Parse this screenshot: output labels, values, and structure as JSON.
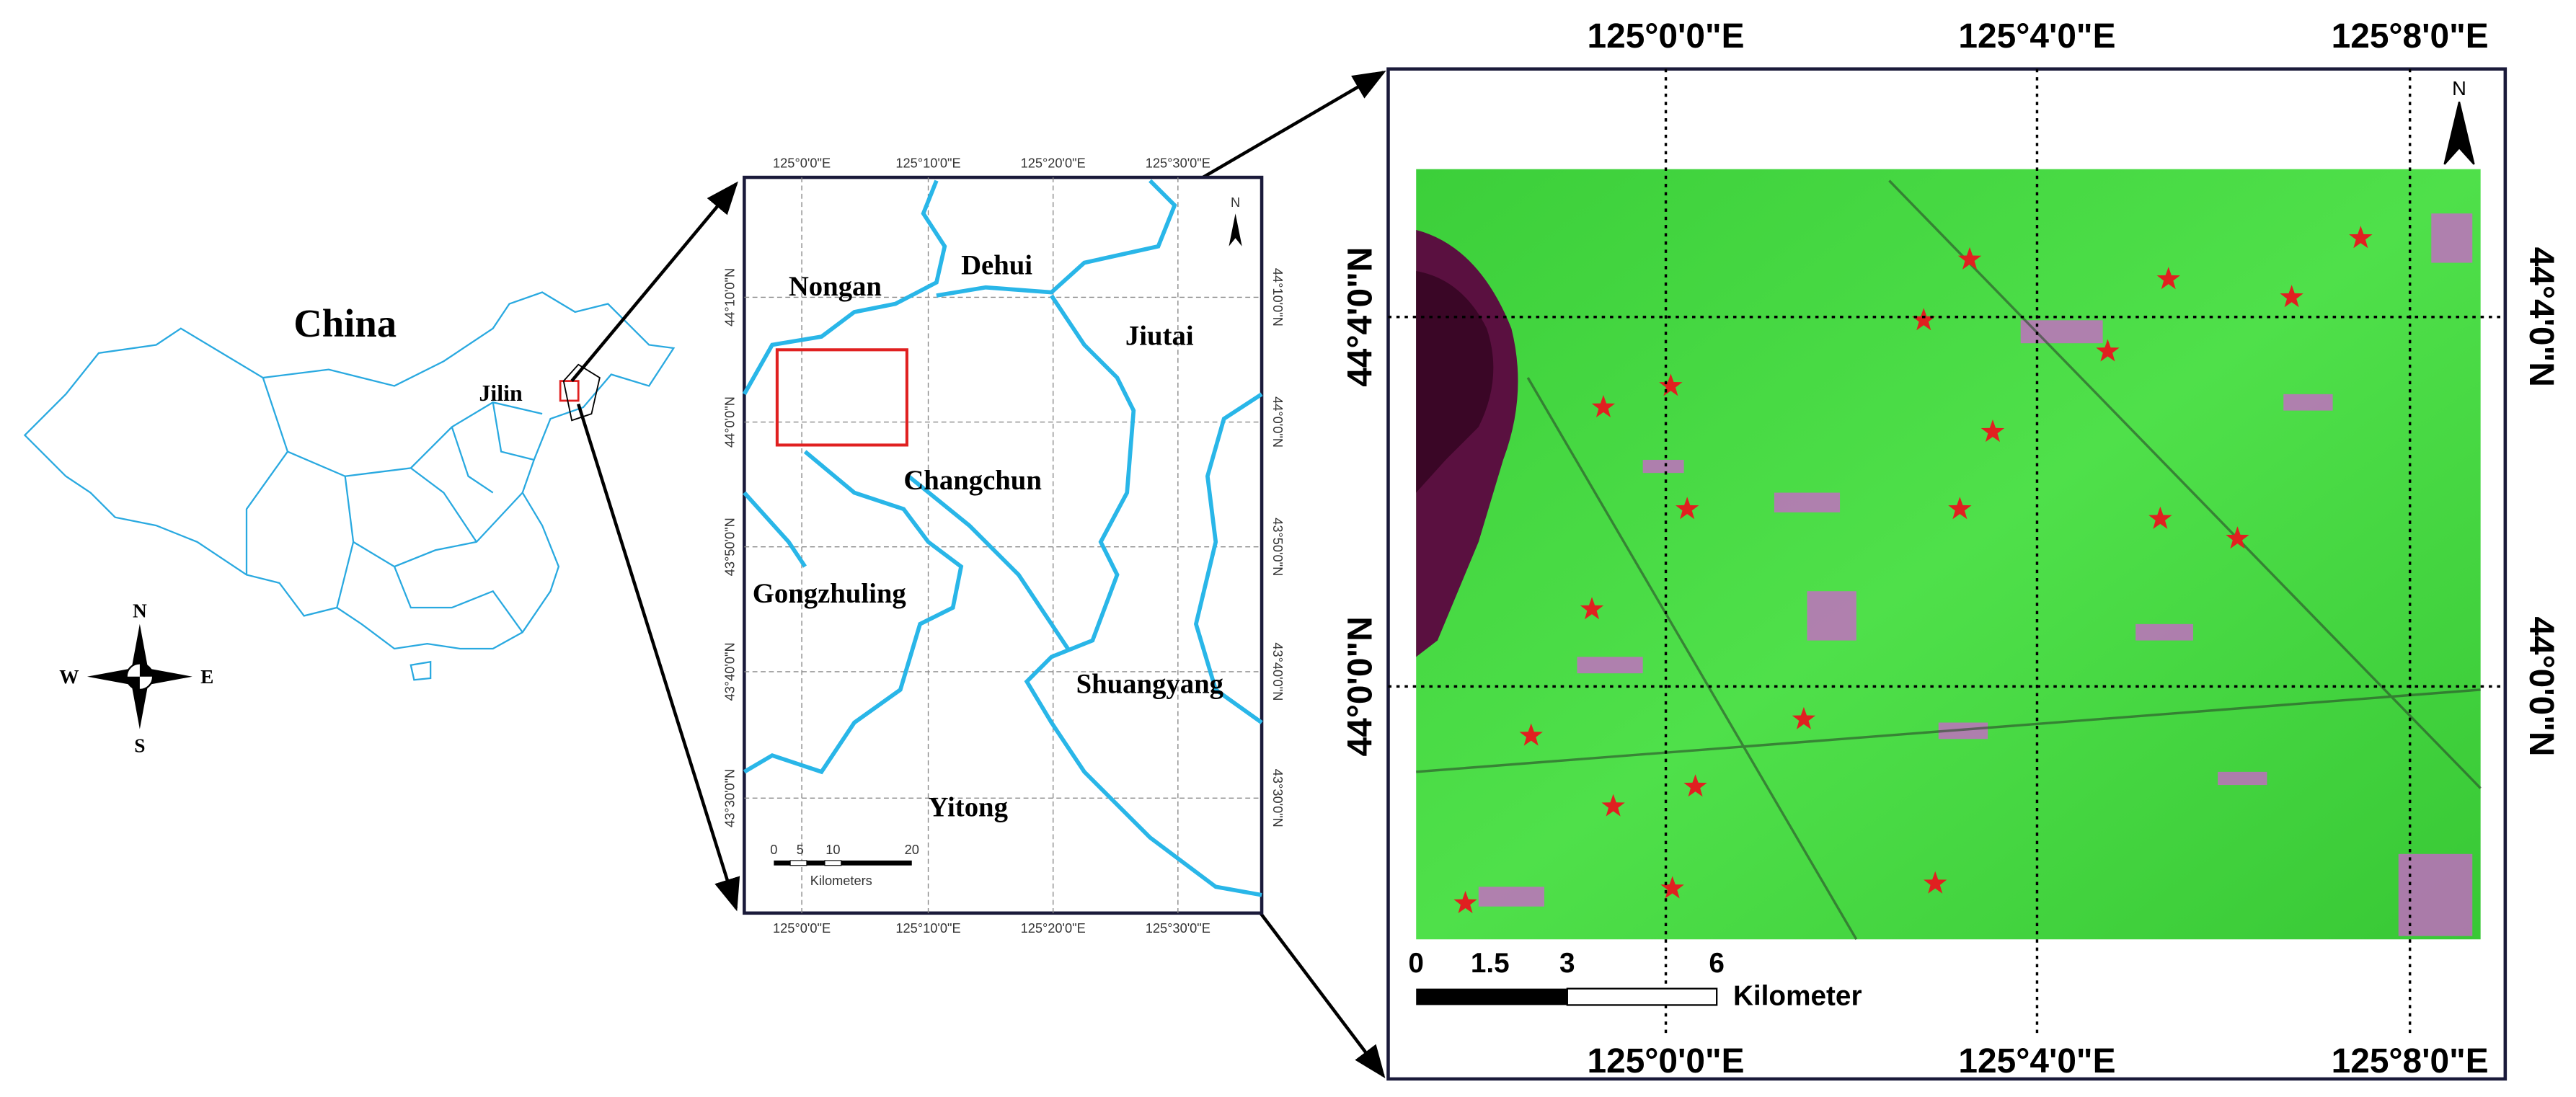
{
  "china_map": {
    "title": "China",
    "province": "Jilin",
    "compass": {
      "north": "N",
      "west": "W",
      "east": "E",
      "south": "S"
    }
  },
  "jilin_map": {
    "lon_labels": [
      "125°0'0\"E",
      "125°10'0\"E",
      "125°20'0\"E",
      "125°30'0\"E"
    ],
    "lat_labels": [
      "44°10'0\"N",
      "44°0'0\"N",
      "43°50'0\"N",
      "43°40'0\"N",
      "43°30'0\"N"
    ],
    "regions": [
      "Nongan",
      "Dehui",
      "Jiutai",
      "Changchun",
      "Gongzhuling",
      "Shuangyang",
      "Yitong"
    ],
    "north": "N",
    "scale": {
      "ticks": [
        "0",
        "5",
        "10",
        "20"
      ],
      "unit": "Kilometers"
    }
  },
  "study_area": {
    "lon_labels": [
      "125°0'0\"E",
      "125°4'0\"E",
      "125°8'0\"E"
    ],
    "lat_labels": [
      "44°4'0\"N",
      "44°0'0\"N"
    ],
    "north": "N",
    "scale": {
      "ticks": [
        "0",
        "1.5",
        "3",
        "6"
      ],
      "unit": "Kilometer"
    }
  }
}
